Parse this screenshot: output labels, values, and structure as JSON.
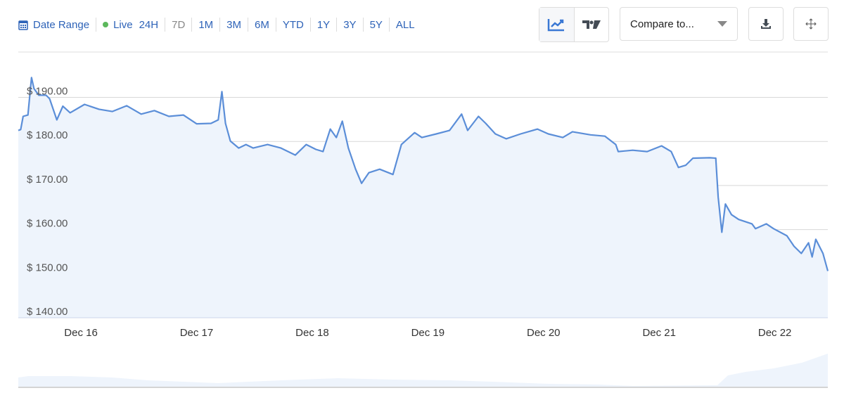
{
  "toolbar": {
    "date_range": "Date Range",
    "live": "Live",
    "ranges": [
      "24H",
      "7D",
      "1M",
      "3M",
      "6M",
      "YTD",
      "1Y",
      "3Y",
      "5Y",
      "ALL"
    ],
    "active_range": "7D",
    "compare": "Compare to...",
    "icons": [
      "calendar-icon",
      "line-chart-icon",
      "tradingview-icon",
      "caret-down-icon",
      "download-icon",
      "fullscreen-move-icon"
    ],
    "live_color": "#5cb85c",
    "accent": "#2e63b8"
  },
  "chart_data": {
    "type": "area",
    "ylim": [
      140,
      195
    ],
    "yticks": [
      "$ 140.00",
      "$ 150.00",
      "$ 160.00",
      "$ 170.00",
      "$ 180.00",
      "$ 190.00"
    ],
    "ytick_values": [
      140,
      150,
      160,
      170,
      180,
      190
    ],
    "xticks": [
      "Dec 16",
      "Dec 17",
      "Dec 18",
      "Dec 19",
      "Dec 20",
      "Dec 21",
      "Dec 22"
    ],
    "xtick_values": [
      "12-16 00:00",
      "12-17 00:00",
      "12-18 00:00",
      "12-19 00:00",
      "12-20 00:00",
      "12-21 00:00",
      "12-22 00:00"
    ],
    "xlim": [
      "12-15 11:00",
      "12-22 11:00"
    ],
    "grid": true,
    "line_color": "#5b8ed8",
    "fill_color": "#eef4fc",
    "points": [
      [
        "12-15 11:00",
        182.5
      ],
      [
        "12-15 11:30",
        182.7
      ],
      [
        "12-15 12:00",
        185.7
      ],
      [
        "12-15 13:00",
        186
      ],
      [
        "12-15 13:45",
        194.5
      ],
      [
        "12-15 14:15",
        192
      ],
      [
        "12-15 15:15",
        190.5
      ],
      [
        "12-15 16:45",
        190.5
      ],
      [
        "12-15 17:30",
        189.7
      ],
      [
        "12-15 19:00",
        184.9
      ],
      [
        "12-15 20:15",
        188
      ],
      [
        "12-15 21:45",
        186.5
      ],
      [
        "12-16 00:45",
        188.4
      ],
      [
        "12-16 03:45",
        187.3
      ],
      [
        "12-16 06:30",
        186.8
      ],
      [
        "12-16 09:30",
        188.1
      ],
      [
        "12-16 12:30",
        186.2
      ],
      [
        "12-16 15:15",
        187
      ],
      [
        "12-16 18:15",
        185.7
      ],
      [
        "12-16 21:15",
        186
      ],
      [
        "12-17 00:00",
        184
      ],
      [
        "12-17 03:00",
        184.1
      ],
      [
        "12-17 04:30",
        184.9
      ],
      [
        "12-17 05:15",
        191.3
      ],
      [
        "12-17 06:00",
        184.1
      ],
      [
        "12-17 07:00",
        180.1
      ],
      [
        "12-17 08:45",
        178.5
      ],
      [
        "12-17 10:15",
        179.3
      ],
      [
        "12-17 11:45",
        178.5
      ],
      [
        "12-17 14:45",
        179.3
      ],
      [
        "12-17 17:30",
        178.5
      ],
      [
        "12-17 20:30",
        176.9
      ],
      [
        "12-17 22:45",
        179.3
      ],
      [
        "12-18 00:45",
        178.2
      ],
      [
        "12-18 02:15",
        177.7
      ],
      [
        "12-18 03:45",
        182.8
      ],
      [
        "12-18 05:00",
        180.9
      ],
      [
        "12-18 06:15",
        184.6
      ],
      [
        "12-18 07:30",
        178.5
      ],
      [
        "12-18 09:00",
        173.7
      ],
      [
        "12-18 10:15",
        170.5
      ],
      [
        "12-18 11:45",
        172.9
      ],
      [
        "12-18 14:00",
        173.7
      ],
      [
        "12-18 16:45",
        172.5
      ],
      [
        "12-18 18:30",
        179.3
      ],
      [
        "12-18 21:15",
        182
      ],
      [
        "12-18 22:45",
        180.9
      ],
      [
        "12-19 01:45",
        181.7
      ],
      [
        "12-19 04:30",
        182.5
      ],
      [
        "12-19 07:00",
        186.2
      ],
      [
        "12-19 08:15",
        182.5
      ],
      [
        "12-19 10:30",
        185.7
      ],
      [
        "12-19 12:00",
        184.1
      ],
      [
        "12-19 14:00",
        181.7
      ],
      [
        "12-19 16:15",
        180.6
      ],
      [
        "12-19 19:15",
        181.7
      ],
      [
        "12-19 22:45",
        182.8
      ],
      [
        "12-20 01:00",
        181.7
      ],
      [
        "12-20 04:00",
        180.9
      ],
      [
        "12-20 06:00",
        182.2
      ],
      [
        "12-20 09:45",
        181.5
      ],
      [
        "12-20 12:45",
        181.2
      ],
      [
        "12-20 15:00",
        179.3
      ],
      [
        "12-20 15:30",
        177.7
      ],
      [
        "12-20 18:30",
        178
      ],
      [
        "12-20 21:30",
        177.7
      ],
      [
        "12-21 00:30",
        179
      ],
      [
        "12-21 02:30",
        177.7
      ],
      [
        "12-21 04:00",
        174.1
      ],
      [
        "12-21 05:30",
        174.6
      ],
      [
        "12-21 07:00",
        176.2
      ],
      [
        "12-21 10:30",
        176.3
      ],
      [
        "12-21 11:45",
        176.2
      ],
      [
        "12-21 12:15",
        167.4
      ],
      [
        "12-21 13:00",
        159.4
      ],
      [
        "12-21 13:45",
        165.8
      ],
      [
        "12-21 15:00",
        163.4
      ],
      [
        "12-21 16:30",
        162.3
      ],
      [
        "12-21 19:15",
        161.3
      ],
      [
        "12-21 20:00",
        160.2
      ],
      [
        "12-21 22:15",
        161.3
      ],
      [
        "12-21 23:45",
        160.2
      ],
      [
        "12-22 02:30",
        158.6
      ],
      [
        "12-22 04:00",
        156.2
      ],
      [
        "12-22 05:30",
        154.6
      ],
      [
        "12-22 07:00",
        157
      ],
      [
        "12-22 07:45",
        153.8
      ],
      [
        "12-22 08:30",
        157.8
      ],
      [
        "12-22 10:00",
        154.6
      ],
      [
        "12-22 11:00",
        150.6
      ]
    ]
  }
}
